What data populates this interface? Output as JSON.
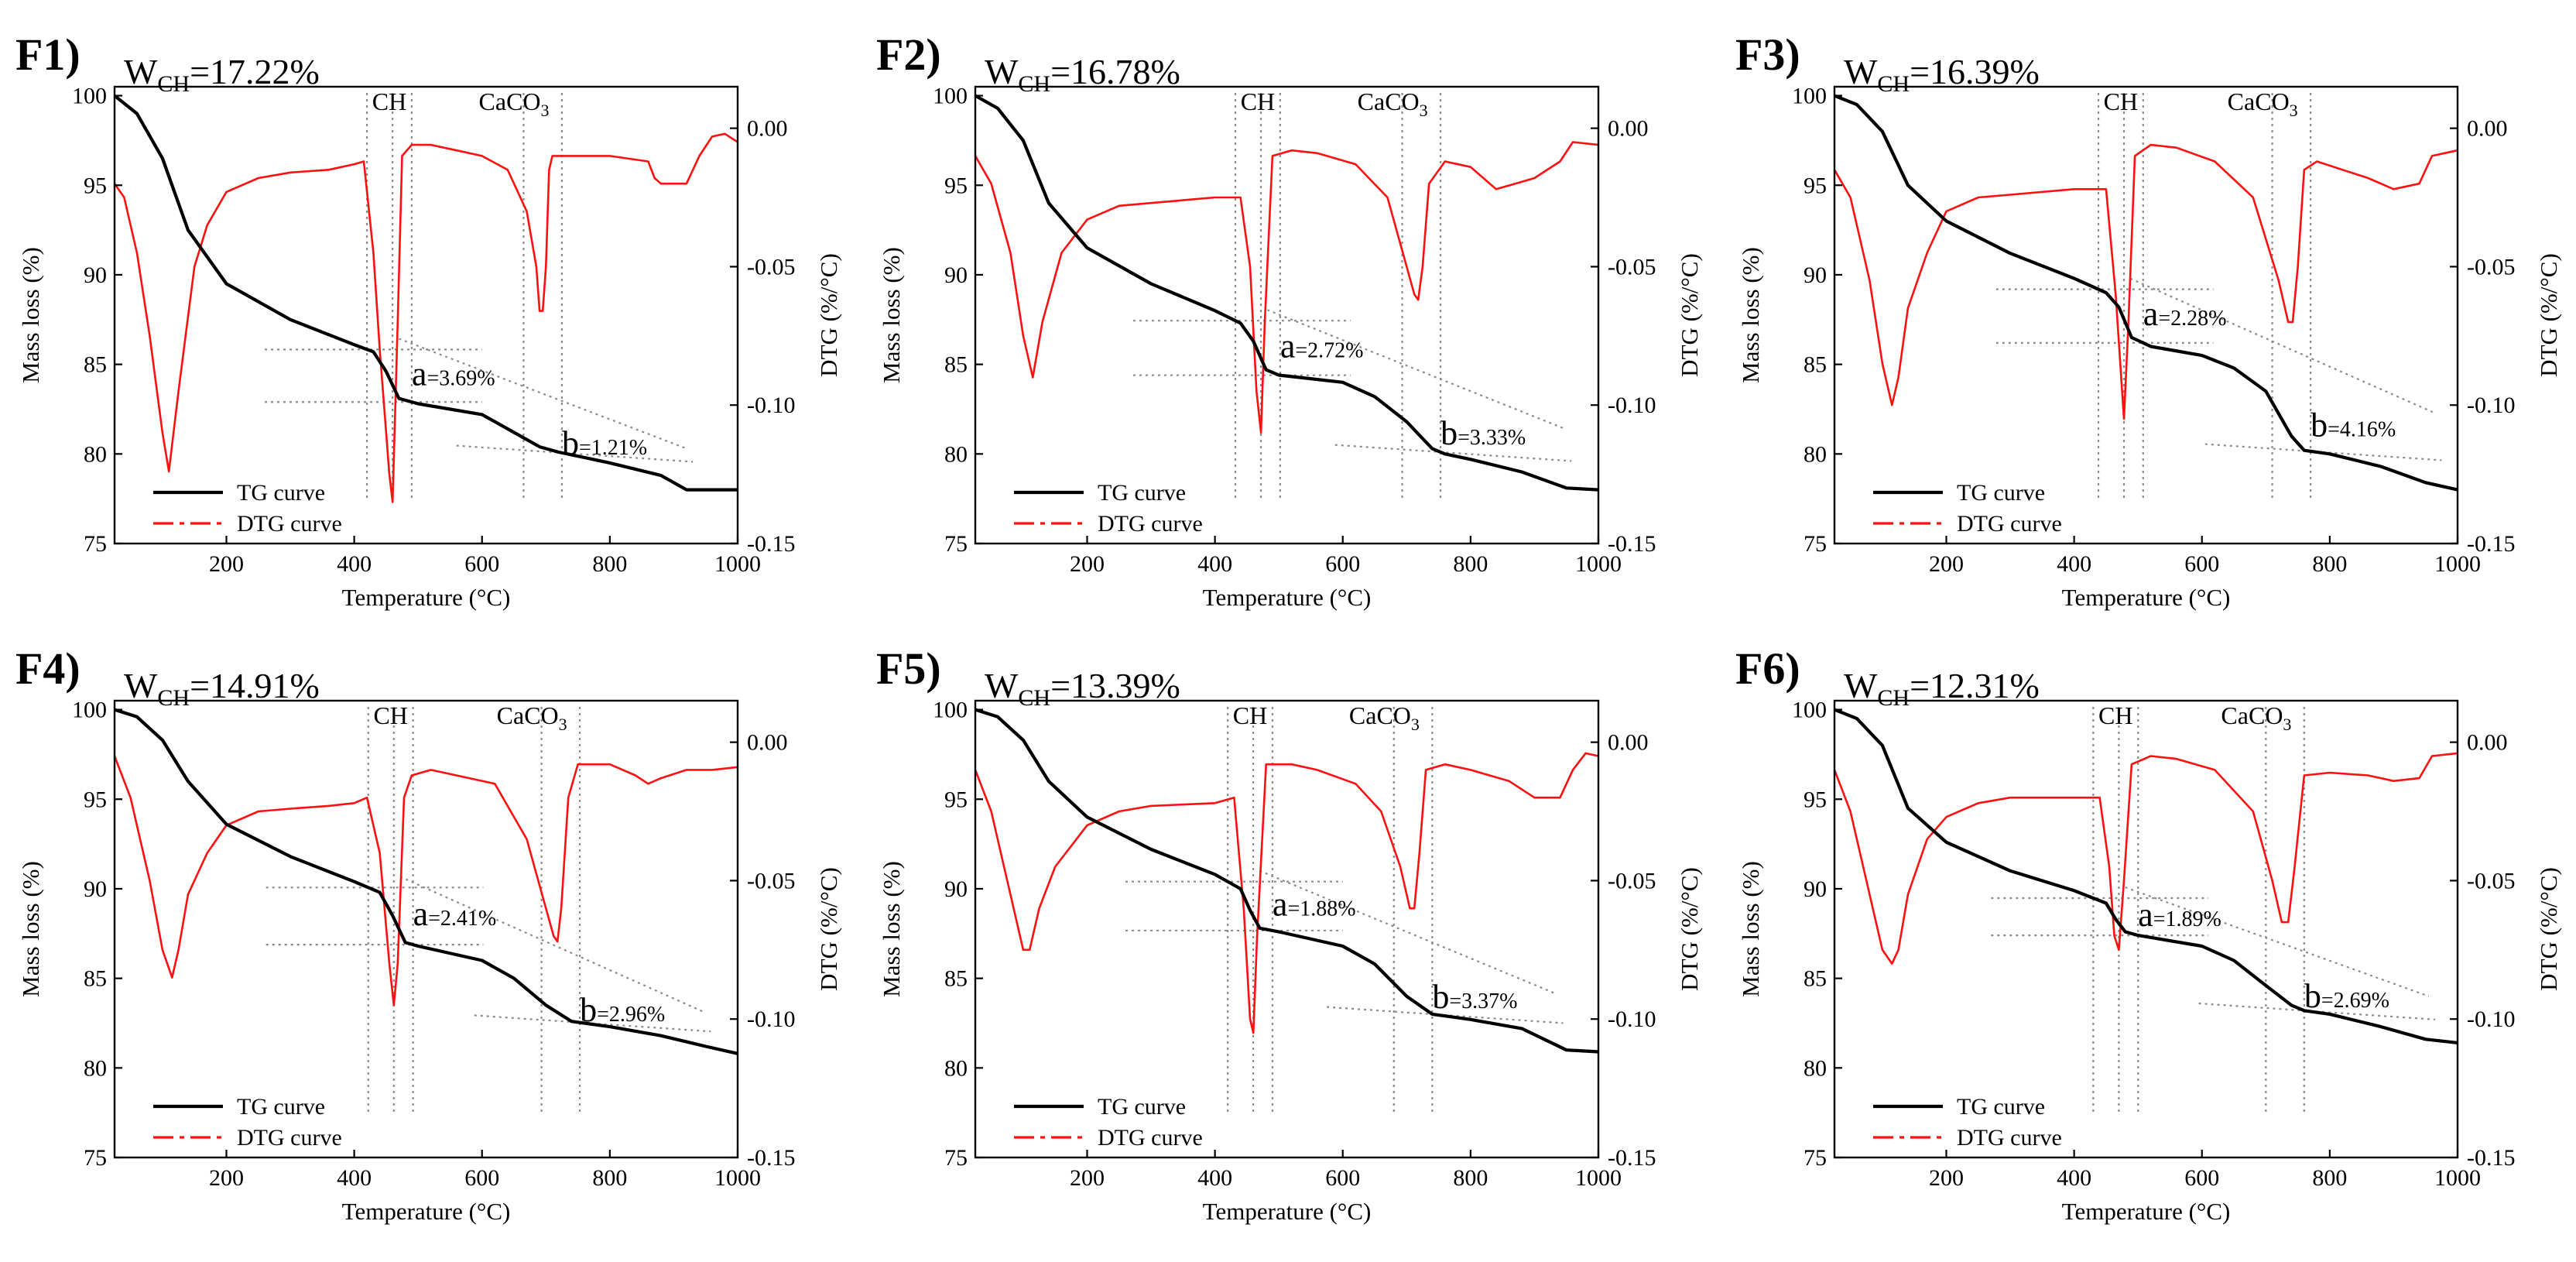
{
  "figure": {
    "shared": {
      "xlabel": "Temperature (°C)",
      "ylabel_left": "Mass loss (%)",
      "ylabel_right": "DTG (%/°C)",
      "legend": [
        "TG curve",
        "DTG curve"
      ],
      "peak_labels": {
        "ch": "CH",
        "caco3_base": "CaCO",
        "caco3_sub": "3"
      },
      "w_prefix": "W",
      "w_sub": "CH",
      "a_letter": "a",
      "b_letter": "b",
      "colors": {
        "tg": "#000000",
        "dtg": "#ff1010",
        "guide": "#8c8c8c"
      }
    }
  },
  "chart_data": [
    {
      "type": "line",
      "panel": "F1)",
      "w_ch": "=17.22%",
      "a": "=3.69%",
      "b": "=1.21%",
      "xlim": [
        25,
        1000
      ],
      "ylim_left": [
        75,
        100.5
      ],
      "ylim_right": [
        -0.15,
        0.015
      ],
      "xticks": [
        200,
        400,
        600,
        800,
        1000
      ],
      "yticks_left": [
        75,
        80,
        85,
        90,
        95,
        100
      ],
      "yticks_right": [
        0.0,
        -0.05,
        -0.1,
        -0.15
      ],
      "xticklabels": [
        "200",
        "400",
        "600",
        "800",
        "1000"
      ],
      "yticklabels_left": [
        "75",
        "80",
        "85",
        "90",
        "95",
        "100"
      ],
      "yticklabels_right": [
        "0.00",
        "-0.05",
        "-0.10",
        "-0.15"
      ],
      "series": [
        {
          "name": "TG curve",
          "x": [
            25,
            60,
            100,
            140,
            200,
            300,
            400,
            430,
            450,
            470,
            500,
            600,
            650,
            690,
            720,
            800,
            880,
            920,
            1000
          ],
          "y": [
            100,
            99,
            96.5,
            92.5,
            89.5,
            87.5,
            86.1,
            85.7,
            84.6,
            83.1,
            82.8,
            82.2,
            81.2,
            80.4,
            80.1,
            79.5,
            78.8,
            78.0,
            78.0
          ]
        },
        {
          "name": "DTG curve",
          "x": [
            25,
            40,
            60,
            80,
            100,
            110,
            125,
            150,
            170,
            200,
            250,
            300,
            360,
            400,
            415,
            430,
            440,
            450,
            455,
            460,
            468,
            475,
            490,
            520,
            560,
            600,
            640,
            670,
            685,
            690,
            695,
            700,
            705,
            710,
            720,
            800,
            860,
            870,
            880,
            920,
            940,
            960,
            980,
            1000
          ],
          "y": [
            -0.02,
            -0.025,
            -0.045,
            -0.075,
            -0.11,
            -0.124,
            -0.095,
            -0.05,
            -0.035,
            -0.023,
            -0.018,
            -0.016,
            -0.015,
            -0.013,
            -0.012,
            -0.045,
            -0.08,
            -0.11,
            -0.125,
            -0.135,
            -0.07,
            -0.01,
            -0.006,
            -0.006,
            -0.008,
            -0.01,
            -0.015,
            -0.03,
            -0.05,
            -0.066,
            -0.066,
            -0.05,
            -0.015,
            -0.01,
            -0.01,
            -0.01,
            -0.012,
            -0.018,
            -0.02,
            -0.02,
            -0.01,
            -0.003,
            -0.002,
            -0.005
          ]
        }
      ]
    },
    {
      "type": "line",
      "panel": "F2)",
      "w_ch": "=16.78%",
      "a": "=2.72%",
      "b": "=3.33%",
      "xlim": [
        25,
        1000
      ],
      "ylim_left": [
        75,
        100.5
      ],
      "ylim_right": [
        -0.15,
        0.015
      ],
      "xticks": [
        200,
        400,
        600,
        800,
        1000
      ],
      "yticks_left": [
        75,
        80,
        85,
        90,
        95,
        100
      ],
      "yticks_right": [
        0.0,
        -0.05,
        -0.1,
        -0.15
      ],
      "xticklabels": [
        "200",
        "400",
        "600",
        "800",
        "1000"
      ],
      "yticklabels_left": [
        "75",
        "80",
        "85",
        "90",
        "95",
        "100"
      ],
      "yticklabels_right": [
        "0.00",
        "-0.05",
        "-0.10",
        "-0.15"
      ],
      "series": [
        {
          "name": "TG curve",
          "x": [
            25,
            60,
            100,
            140,
            200,
            300,
            400,
            440,
            460,
            480,
            500,
            600,
            650,
            700,
            740,
            760,
            800,
            880,
            950,
            1000
          ],
          "y": [
            100,
            99.3,
            97.5,
            94,
            91.5,
            89.5,
            88,
            87.3,
            86.3,
            84.7,
            84.4,
            84,
            83.2,
            81.8,
            80.3,
            80.0,
            79.7,
            79.0,
            78.1,
            78.0
          ]
        },
        {
          "name": "DTG curve",
          "x": [
            25,
            50,
            80,
            100,
            115,
            130,
            160,
            200,
            250,
            300,
            400,
            440,
            455,
            465,
            472,
            478,
            490,
            520,
            560,
            620,
            670,
            700,
            712,
            718,
            725,
            735,
            760,
            800,
            840,
            870,
            900,
            940,
            960,
            1000
          ],
          "y": [
            -0.01,
            -0.02,
            -0.045,
            -0.075,
            -0.09,
            -0.07,
            -0.045,
            -0.033,
            -0.028,
            -0.027,
            -0.025,
            -0.025,
            -0.05,
            -0.095,
            -0.11,
            -0.07,
            -0.01,
            -0.008,
            -0.009,
            -0.013,
            -0.025,
            -0.05,
            -0.06,
            -0.062,
            -0.05,
            -0.02,
            -0.012,
            -0.014,
            -0.022,
            -0.02,
            -0.018,
            -0.012,
            -0.005,
            -0.006
          ]
        }
      ]
    },
    {
      "type": "line",
      "panel": "F3)",
      "w_ch": "=16.39%",
      "a": "=2.28%",
      "b": "=4.16%",
      "xlim": [
        25,
        1000
      ],
      "ylim_left": [
        75,
        100.5
      ],
      "ylim_right": [
        -0.15,
        0.015
      ],
      "xticks": [
        200,
        400,
        600,
        800,
        1000
      ],
      "yticks_left": [
        75,
        80,
        85,
        90,
        95,
        100
      ],
      "yticks_right": [
        0.0,
        -0.05,
        -0.1,
        -0.15
      ],
      "xticklabels": [
        "200",
        "400",
        "600",
        "800",
        "1000"
      ],
      "yticklabels_left": [
        "75",
        "80",
        "85",
        "90",
        "95",
        "100"
      ],
      "yticklabels_right": [
        "0.00",
        "-0.05",
        "-0.10",
        "-0.15"
      ],
      "series": [
        {
          "name": "TG curve",
          "x": [
            25,
            60,
            100,
            140,
            200,
            300,
            400,
            450,
            470,
            490,
            520,
            600,
            650,
            700,
            740,
            760,
            800,
            880,
            950,
            1000
          ],
          "y": [
            100,
            99.5,
            98,
            95,
            93,
            91.2,
            89.8,
            89.0,
            88.2,
            86.5,
            86.0,
            85.5,
            84.8,
            83.5,
            81.0,
            80.2,
            80.0,
            79.3,
            78.4,
            78.0
          ]
        },
        {
          "name": "DTG curve",
          "x": [
            25,
            50,
            80,
            100,
            115,
            125,
            140,
            170,
            200,
            250,
            300,
            400,
            450,
            465,
            478,
            485,
            495,
            520,
            560,
            620,
            680,
            720,
            735,
            742,
            750,
            760,
            780,
            820,
            860,
            900,
            940,
            960,
            1000
          ],
          "y": [
            -0.015,
            -0.025,
            -0.055,
            -0.085,
            -0.1,
            -0.09,
            -0.065,
            -0.045,
            -0.03,
            -0.025,
            -0.024,
            -0.022,
            -0.022,
            -0.06,
            -0.105,
            -0.07,
            -0.01,
            -0.006,
            -0.007,
            -0.012,
            -0.025,
            -0.055,
            -0.07,
            -0.07,
            -0.05,
            -0.015,
            -0.012,
            -0.015,
            -0.018,
            -0.022,
            -0.02,
            -0.01,
            -0.008
          ]
        }
      ]
    },
    {
      "type": "line",
      "panel": "F4)",
      "w_ch": "=14.91%",
      "a": "=2.41%",
      "b": "=2.96%",
      "xlim": [
        25,
        1000
      ],
      "ylim_left": [
        75,
        100.5
      ],
      "ylim_right": [
        -0.15,
        0.015
      ],
      "xticks": [
        200,
        400,
        600,
        800,
        1000
      ],
      "yticks_left": [
        75,
        80,
        85,
        90,
        95,
        100
      ],
      "yticks_right": [
        0.0,
        -0.05,
        -0.1,
        -0.15
      ],
      "xticklabels": [
        "200",
        "400",
        "600",
        "800",
        "1000"
      ],
      "yticklabels_left": [
        "75",
        "80",
        "85",
        "90",
        "95",
        "100"
      ],
      "yticklabels_right": [
        "0.00",
        "-0.05",
        "-0.10",
        "-0.15"
      ],
      "series": [
        {
          "name": "TG curve",
          "x": [
            25,
            60,
            100,
            140,
            200,
            300,
            400,
            440,
            460,
            480,
            500,
            600,
            650,
            700,
            740,
            760,
            800,
            880,
            950,
            1000
          ],
          "y": [
            100,
            99.6,
            98.3,
            96,
            93.6,
            91.8,
            90.4,
            89.8,
            88.5,
            87.0,
            86.8,
            86.0,
            85.0,
            83.5,
            82.6,
            82.5,
            82.3,
            81.8,
            81.2,
            80.8
          ]
        },
        {
          "name": "DTG curve",
          "x": [
            25,
            50,
            80,
            100,
            115,
            125,
            140,
            170,
            200,
            250,
            300,
            360,
            400,
            420,
            440,
            455,
            462,
            468,
            478,
            490,
            520,
            560,
            620,
            670,
            700,
            712,
            718,
            724,
            735,
            750,
            800,
            840,
            860,
            880,
            920,
            960,
            1000
          ],
          "y": [
            -0.005,
            -0.02,
            -0.05,
            -0.075,
            -0.085,
            -0.075,
            -0.055,
            -0.04,
            -0.03,
            -0.025,
            -0.024,
            -0.023,
            -0.022,
            -0.02,
            -0.04,
            -0.08,
            -0.095,
            -0.08,
            -0.02,
            -0.012,
            -0.01,
            -0.012,
            -0.015,
            -0.035,
            -0.06,
            -0.07,
            -0.072,
            -0.06,
            -0.02,
            -0.008,
            -0.008,
            -0.012,
            -0.015,
            -0.013,
            -0.01,
            -0.01,
            -0.009
          ]
        }
      ]
    },
    {
      "type": "line",
      "panel": "F5)",
      "w_ch": "=13.39%",
      "a": "=1.88%",
      "b": "=3.37%",
      "xlim": [
        25,
        1000
      ],
      "ylim_left": [
        75,
        100.5
      ],
      "ylim_right": [
        -0.15,
        0.015
      ],
      "xticks": [
        200,
        400,
        600,
        800,
        1000
      ],
      "yticks_left": [
        75,
        80,
        85,
        90,
        95,
        100
      ],
      "yticks_right": [
        0.0,
        -0.05,
        -0.1,
        -0.15
      ],
      "xticklabels": [
        "200",
        "400",
        "600",
        "800",
        "1000"
      ],
      "yticklabels_left": [
        "75",
        "80",
        "85",
        "90",
        "95",
        "100"
      ],
      "yticklabels_right": [
        "0.00",
        "-0.05",
        "-0.10",
        "-0.15"
      ],
      "series": [
        {
          "name": "TG curve",
          "x": [
            25,
            60,
            100,
            140,
            200,
            300,
            400,
            440,
            455,
            470,
            500,
            600,
            650,
            700,
            740,
            760,
            800,
            880,
            950,
            1000
          ],
          "y": [
            100,
            99.6,
            98.3,
            96,
            94,
            92.2,
            90.8,
            90.0,
            88.8,
            87.8,
            87.6,
            86.8,
            85.8,
            84.0,
            83.0,
            82.9,
            82.7,
            82.2,
            81.0,
            80.9
          ]
        },
        {
          "name": "DTG curve",
          "x": [
            25,
            50,
            80,
            100,
            110,
            125,
            150,
            200,
            250,
            300,
            400,
            430,
            445,
            455,
            460,
            466,
            480,
            520,
            560,
            620,
            660,
            690,
            705,
            712,
            720,
            730,
            760,
            800,
            860,
            900,
            940,
            960,
            980,
            1000
          ],
          "y": [
            -0.01,
            -0.025,
            -0.055,
            -0.075,
            -0.075,
            -0.06,
            -0.045,
            -0.03,
            -0.025,
            -0.023,
            -0.022,
            -0.02,
            -0.06,
            -0.1,
            -0.105,
            -0.07,
            -0.008,
            -0.008,
            -0.01,
            -0.015,
            -0.025,
            -0.045,
            -0.06,
            -0.06,
            -0.04,
            -0.01,
            -0.008,
            -0.01,
            -0.014,
            -0.02,
            -0.02,
            -0.01,
            -0.004,
            -0.005
          ]
        }
      ]
    },
    {
      "type": "line",
      "panel": "F6)",
      "w_ch": "=12.31%",
      "a": "=1.89%",
      "b": "=2.69%",
      "xlim": [
        25,
        1000
      ],
      "ylim_left": [
        75,
        100.5
      ],
      "ylim_right": [
        -0.15,
        0.015
      ],
      "xticks": [
        200,
        400,
        600,
        800,
        1000
      ],
      "yticks_left": [
        75,
        80,
        85,
        90,
        95,
        100
      ],
      "yticks_right": [
        0.0,
        -0.05,
        -0.1,
        -0.15
      ],
      "xticklabels": [
        "200",
        "400",
        "600",
        "800",
        "1000"
      ],
      "yticklabels_left": [
        "75",
        "80",
        "85",
        "90",
        "95",
        "100"
      ],
      "yticklabels_right": [
        "0.00",
        "-0.05",
        "-0.10",
        "-0.15"
      ],
      "series": [
        {
          "name": "TG curve",
          "x": [
            25,
            60,
            100,
            140,
            200,
            300,
            400,
            450,
            465,
            480,
            500,
            600,
            650,
            700,
            740,
            760,
            800,
            880,
            950,
            1000
          ],
          "y": [
            100,
            99.5,
            98,
            94.5,
            92.6,
            91.0,
            89.9,
            89.2,
            88.3,
            87.6,
            87.4,
            86.8,
            86.0,
            84.6,
            83.5,
            83.2,
            83.0,
            82.3,
            81.6,
            81.4
          ]
        },
        {
          "name": "DTG curve",
          "x": [
            25,
            50,
            80,
            100,
            115,
            125,
            140,
            170,
            200,
            250,
            300,
            400,
            440,
            455,
            463,
            470,
            478,
            490,
            520,
            560,
            620,
            680,
            710,
            725,
            735,
            745,
            760,
            800,
            860,
            900,
            940,
            960,
            1000
          ],
          "y": [
            -0.01,
            -0.025,
            -0.055,
            -0.075,
            -0.08,
            -0.075,
            -0.055,
            -0.035,
            -0.027,
            -0.022,
            -0.02,
            -0.02,
            -0.02,
            -0.045,
            -0.07,
            -0.075,
            -0.05,
            -0.008,
            -0.005,
            -0.006,
            -0.01,
            -0.025,
            -0.05,
            -0.065,
            -0.065,
            -0.045,
            -0.012,
            -0.011,
            -0.012,
            -0.014,
            -0.013,
            -0.005,
            -0.004
          ]
        }
      ]
    }
  ]
}
